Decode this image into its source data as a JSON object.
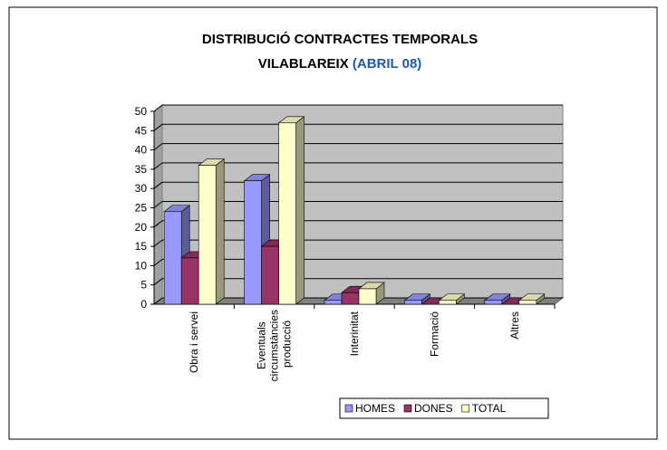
{
  "chart_data": {
    "type": "bar3d",
    "title": "DISTRIBUCIÓ CONTRACTES TEMPORALS",
    "subtitle": "VILABLAREIX",
    "subtitle_highlight": "(ABRIL 08)",
    "categories": [
      "Obra i servei",
      "Eventuals circumstàncies producció",
      "Interinitat",
      "Formació",
      "Altres"
    ],
    "series": [
      {
        "name": "HOMES",
        "color": "#9999ff",
        "values": [
          24,
          32,
          1,
          1,
          1
        ]
      },
      {
        "name": "DONES",
        "color": "#993366",
        "values": [
          12,
          15,
          3,
          0,
          0
        ]
      },
      {
        "name": "TOTAL",
        "color": "#ffffcc",
        "values": [
          36,
          47,
          4,
          1,
          1
        ]
      }
    ],
    "ylim": [
      0,
      50
    ],
    "yticks": [
      0,
      5,
      10,
      15,
      20,
      25,
      30,
      35,
      40,
      45,
      50
    ],
    "grid": true
  }
}
